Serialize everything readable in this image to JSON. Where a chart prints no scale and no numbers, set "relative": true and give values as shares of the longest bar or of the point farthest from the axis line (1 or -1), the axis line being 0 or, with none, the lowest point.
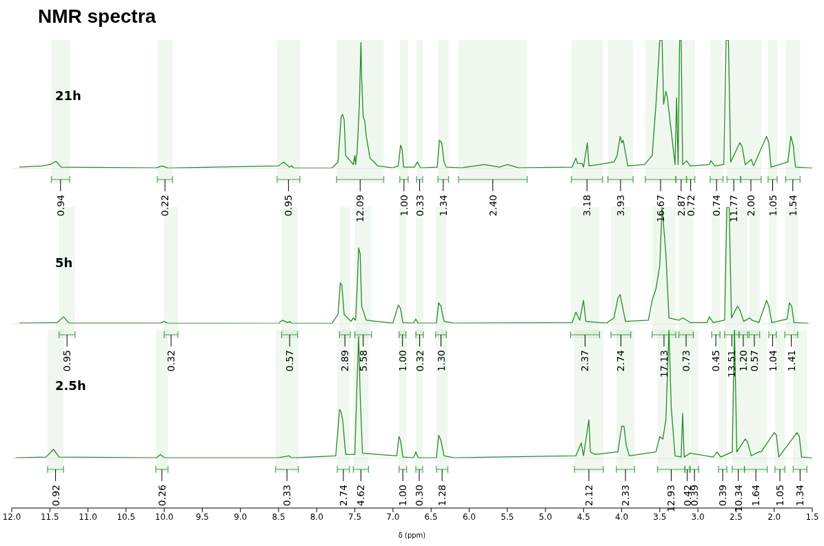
{
  "chart_data": [
    {
      "type": "line",
      "title": "NMR spectra",
      "subtitle": "21h",
      "xlim": [
        12.0,
        1.5
      ],
      "relative": true,
      "tick_labels": false,
      "line_style": "solid",
      "marker": "none",
      "series": [
        {
          "color": "#228b22",
          "x": [
            11.9,
            11.6,
            11.5,
            11.42,
            11.35,
            10.1,
            10.03,
            9.95,
            9.35,
            8.5,
            8.43,
            8.36,
            8.33,
            8.3,
            7.8,
            7.72,
            7.68,
            7.66,
            7.64,
            7.62,
            7.56,
            7.52,
            7.5,
            7.49,
            7.47,
            7.44,
            7.42,
            7.41,
            7.39,
            7.37,
            7.35,
            7.3,
            7.2,
            7.0,
            6.93,
            6.9,
            6.88,
            6.86,
            6.72,
            6.68,
            6.64,
            6.42,
            6.39,
            6.36,
            6.33,
            6.3,
            6.1,
            5.8,
            5.6,
            5.5,
            5.35,
            4.65,
            4.6,
            4.58,
            4.52,
            4.5,
            4.45,
            4.43,
            4.3,
            4.1,
            4.06,
            4.02,
            4.0,
            3.98,
            3.95,
            3.92,
            3.7,
            3.6,
            3.55,
            3.5,
            3.47,
            3.45,
            3.42,
            3.4,
            3.3,
            3.28,
            3.26,
            3.24,
            3.22,
            3.2,
            3.15,
            3.1,
            2.85,
            2.83,
            2.78,
            2.66,
            2.63,
            2.6,
            2.57,
            2.45,
            2.42,
            2.38,
            2.3,
            2.27,
            2.1,
            2.07,
            2.04,
            1.82,
            1.78,
            1.75,
            1.72,
            1.5
          ],
          "values": [
            0.01,
            0.02,
            0.03,
            0.055,
            0.01,
            0.005,
            0.02,
            0.003,
            0.01,
            0.02,
            0.05,
            0.01,
            0.02,
            0.003,
            0.003,
            0.05,
            0.4,
            0.42,
            0.38,
            0.1,
            0.06,
            0.03,
            0.1,
            0.03,
            0.13,
            0.5,
            0.98,
            0.7,
            0.4,
            0.37,
            0.25,
            0.08,
            0.02,
            0.005,
            0.02,
            0.18,
            0.15,
            0.01,
            0.01,
            0.05,
            0.005,
            0.01,
            0.22,
            0.2,
            0.05,
            0.01,
            0.005,
            0.03,
            0.01,
            0.03,
            0.005,
            0.01,
            0.08,
            0.04,
            0.04,
            0.01,
            0.2,
            0.02,
            0.03,
            0.05,
            0.1,
            0.25,
            0.2,
            0.22,
            0.12,
            0.02,
            0.03,
            0.1,
            0.5,
            1,
            1,
            0.5,
            0.6,
            0.55,
            0.03,
            0.55,
            0.03,
            1,
            1,
            0.03,
            0.06,
            0.02,
            0.03,
            0.06,
            0.02,
            0.03,
            1,
            1,
            0.05,
            0.2,
            0.17,
            0.03,
            0.07,
            0.02,
            0.25,
            0.2,
            0.01,
            0.05,
            0.25,
            0.18,
            0.01,
            0.003
          ]
        }
      ],
      "bands": [
        {
          "axis": "x",
          "from": 11.48,
          "to": 11.24,
          "label": "0.94"
        },
        {
          "axis": "x",
          "from": 10.09,
          "to": 9.89,
          "label": "0.22"
        },
        {
          "axis": "x",
          "from": 8.52,
          "to": 8.22,
          "label": "0.95"
        },
        {
          "axis": "x",
          "from": 7.74,
          "to": 7.12,
          "label": "12.09"
        },
        {
          "axis": "x",
          "from": 6.91,
          "to": 6.8,
          "label": "1.00"
        },
        {
          "axis": "x",
          "from": 6.69,
          "to": 6.61,
          "label": "0.33"
        },
        {
          "axis": "x",
          "from": 6.41,
          "to": 6.27,
          "label": "1.34"
        },
        {
          "axis": "x",
          "from": 6.14,
          "to": 5.24,
          "label": "2.40"
        },
        {
          "axis": "x",
          "from": 4.66,
          "to": 4.25,
          "label": "3.18"
        },
        {
          "axis": "x",
          "from": 4.18,
          "to": 3.85,
          "label": "3.93"
        },
        {
          "axis": "x",
          "from": 3.69,
          "to": 3.29,
          "label": "16.67"
        },
        {
          "axis": "x",
          "from": 3.29,
          "to": 3.15,
          "label": "2.87"
        },
        {
          "axis": "x",
          "from": 3.15,
          "to": 3.04,
          "label": "0.72"
        },
        {
          "axis": "x",
          "from": 2.84,
          "to": 2.67,
          "label": "0.74"
        },
        {
          "axis": "x",
          "from": 2.62,
          "to": 2.44,
          "label": "11.77"
        },
        {
          "axis": "x",
          "from": 2.44,
          "to": 2.17,
          "label": "2.00"
        },
        {
          "axis": "x",
          "from": 2.08,
          "to": 1.96,
          "label": "1.05"
        },
        {
          "axis": "x",
          "from": 1.85,
          "to": 1.66,
          "label": "1.54"
        }
      ]
    },
    {
      "type": "line",
      "subtitle": "5h",
      "xlim": [
        12.0,
        1.5
      ],
      "relative": true,
      "tick_labels": false,
      "line_style": "solid",
      "marker": "none",
      "series": [
        {
          "color": "#228b22",
          "x": [
            11.9,
            11.4,
            11.32,
            11.25,
            10.05,
            10.0,
            9.95,
            8.5,
            8.45,
            8.38,
            8.35,
            8.33,
            7.8,
            7.72,
            7.69,
            7.67,
            7.64,
            7.55,
            7.52,
            7.49,
            7.47,
            7.45,
            7.43,
            7.41,
            7.35,
            7.0,
            6.93,
            6.9,
            6.87,
            6.73,
            6.7,
            6.67,
            6.43,
            6.4,
            6.37,
            6.33,
            6.2,
            4.65,
            4.6,
            4.55,
            4.5,
            4.47,
            4.2,
            4.1,
            4.05,
            4.02,
            3.99,
            3.95,
            3.65,
            3.6,
            3.55,
            3.5,
            3.47,
            3.42,
            3.38,
            3.25,
            3.2,
            3.1,
            2.88,
            2.85,
            2.8,
            2.65,
            2.62,
            2.59,
            2.56,
            2.48,
            2.45,
            2.4,
            2.32,
            2.29,
            2.2,
            2.1,
            2.07,
            2.03,
            1.83,
            1.8,
            1.77,
            1.74,
            1.55
          ],
          "values": [
            0.005,
            0.01,
            0.06,
            0.005,
            0.005,
            0.02,
            0.003,
            0.005,
            0.03,
            0.01,
            0.02,
            0.003,
            0.003,
            0.08,
            0.35,
            0.33,
            0.08,
            0.02,
            0.05,
            0.03,
            0.3,
            0.65,
            0.6,
            0.15,
            0.03,
            0.005,
            0.16,
            0.13,
            0.01,
            0.005,
            0.04,
            0.005,
            0.005,
            0.18,
            0.15,
            0.02,
            0.005,
            0.01,
            0.1,
            0.03,
            0.2,
            0.02,
            0.005,
            0.05,
            0.22,
            0.25,
            0.15,
            0.02,
            0.03,
            0.2,
            0.3,
            0.5,
            1,
            0.6,
            0.05,
            0.03,
            0.05,
            0.01,
            0.01,
            0.06,
            0.01,
            0.03,
            1,
            1,
            0.05,
            0.15,
            0.12,
            0.02,
            0.05,
            0.03,
            0.01,
            0.2,
            0.15,
            0.01,
            0.04,
            0.18,
            0.15,
            0.01,
            0.003
          ]
        }
      ],
      "bands": [
        {
          "axis": "x",
          "from": 11.38,
          "to": 11.17,
          "label": "0.95"
        },
        {
          "axis": "x",
          "from": 10.0,
          "to": 9.82,
          "label": "0.32"
        },
        {
          "axis": "x",
          "from": 8.46,
          "to": 8.25,
          "label": "0.57"
        },
        {
          "axis": "x",
          "from": 7.7,
          "to": 7.56,
          "label": "2.89"
        },
        {
          "axis": "x",
          "from": 7.5,
          "to": 7.28,
          "label": "5.58"
        },
        {
          "axis": "x",
          "from": 6.92,
          "to": 6.83,
          "label": "1.00"
        },
        {
          "axis": "x",
          "from": 6.7,
          "to": 6.6,
          "label": "0.32"
        },
        {
          "axis": "x",
          "from": 6.44,
          "to": 6.3,
          "label": "1.30"
        },
        {
          "axis": "x",
          "from": 4.67,
          "to": 4.29,
          "label": "2.37"
        },
        {
          "axis": "x",
          "from": 4.14,
          "to": 3.88,
          "label": "2.74"
        },
        {
          "axis": "x",
          "from": 3.6,
          "to": 3.29,
          "label": "17.13"
        },
        {
          "axis": "x",
          "from": 3.25,
          "to": 3.06,
          "label": "0.73"
        },
        {
          "axis": "x",
          "from": 2.82,
          "to": 2.71,
          "label": "0.45"
        },
        {
          "axis": "x",
          "from": 2.65,
          "to": 2.46,
          "label": "13.51"
        },
        {
          "axis": "x",
          "from": 2.46,
          "to": 2.35,
          "label": "1.20"
        },
        {
          "axis": "x",
          "from": 2.33,
          "to": 2.19,
          "label": "0.57"
        },
        {
          "axis": "x",
          "from": 2.07,
          "to": 1.97,
          "label": "1.04"
        },
        {
          "axis": "x",
          "from": 1.86,
          "to": 1.69,
          "label": "1.41"
        }
      ]
    },
    {
      "type": "line",
      "subtitle": "2.5h",
      "xlabel": "δ (ppm)",
      "xlim": [
        12.0,
        1.5
      ],
      "relative": true,
      "tick_labels": "x",
      "line_style": "solid",
      "marker": "none",
      "xticks": [
        {
          "value": 12,
          "label": "12.0"
        },
        {
          "value": 11.5,
          "label": "11.5"
        },
        {
          "value": 11,
          "label": "11.0"
        },
        {
          "value": 10.5,
          "label": "10.5"
        },
        {
          "value": 10,
          "label": "10.0"
        },
        {
          "value": 9.5,
          "label": "9.5"
        },
        {
          "value": 9,
          "label": "9.0"
        },
        {
          "value": 8.5,
          "label": "8.5"
        },
        {
          "value": 8,
          "label": "8.0"
        },
        {
          "value": 7.5,
          "label": "7.5"
        },
        {
          "value": 7,
          "label": "7.0"
        },
        {
          "value": 6.5,
          "label": "6.5"
        },
        {
          "value": 6,
          "label": "6.0"
        },
        {
          "value": 5.5,
          "label": "5.5"
        },
        {
          "value": 5,
          "label": "5.0"
        },
        {
          "value": 4.5,
          "label": "4.5"
        },
        {
          "value": 4,
          "label": "4.0"
        },
        {
          "value": 3.5,
          "label": "3.5"
        },
        {
          "value": 3,
          "label": "3.0"
        },
        {
          "value": 2.5,
          "label": "2.5"
        },
        {
          "value": 2,
          "label": "2.0"
        },
        {
          "value": 1.5,
          "label": "1.5"
        }
      ],
      "series": [
        {
          "color": "#228b22",
          "x": [
            11.95,
            11.55,
            11.5,
            11.45,
            11.38,
            10.1,
            10.05,
            10.0,
            8.5,
            8.45,
            8.36,
            8.33,
            7.75,
            7.7,
            7.68,
            7.66,
            7.62,
            7.5,
            7.47,
            7.45,
            7.43,
            7.4,
            6.95,
            6.92,
            6.9,
            6.87,
            6.73,
            6.7,
            6.67,
            6.43,
            6.4,
            6.37,
            6.33,
            6.2,
            4.6,
            4.53,
            4.5,
            4.43,
            4.41,
            4.35,
            4.05,
            4.0,
            3.97,
            3.94,
            3.9,
            3.55,
            3.5,
            3.46,
            3.42,
            3.38,
            3.35,
            3.3,
            3.22,
            3.2,
            3.18,
            3.1,
            2.8,
            2.75,
            2.7,
            2.55,
            2.52,
            2.49,
            2.38,
            2.35,
            2.3,
            2.2,
            2.17,
            2.0,
            1.97,
            1.94,
            1.7,
            1.67,
            1.64,
            1.5
          ],
          "values": [
            0.005,
            0.01,
            0.04,
            0.07,
            0.01,
            0.005,
            0.03,
            0.005,
            0.005,
            0.01,
            0.02,
            0.003,
            0.02,
            0.38,
            0.36,
            0.3,
            0.03,
            0.03,
            0.6,
            0.95,
            0.5,
            0.04,
            0.02,
            0.17,
            0.14,
            0.01,
            0.005,
            0.05,
            0.005,
            0.005,
            0.18,
            0.14,
            0.02,
            0.005,
            0.02,
            0.12,
            0.02,
            0.3,
            0.05,
            0.03,
            0.05,
            0.25,
            0.25,
            0.1,
            0.02,
            0.05,
            0.17,
            0.15,
            0.3,
            1,
            0.4,
            0.02,
            0.01,
            0.35,
            0.01,
            0.04,
            0.01,
            0.05,
            0.01,
            0.05,
            1,
            0.05,
            0.15,
            0.13,
            0.02,
            0.05,
            0.05,
            0.2,
            0.18,
            0.01,
            0.2,
            0.17,
            0.01,
            0.003
          ]
        }
      ],
      "bands": [
        {
          "axis": "x",
          "from": 11.53,
          "to": 11.32,
          "label": "0.92"
        },
        {
          "axis": "x",
          "from": 10.11,
          "to": 9.95,
          "label": "0.26"
        },
        {
          "axis": "x",
          "from": 8.54,
          "to": 8.24,
          "label": "0.33"
        },
        {
          "axis": "x",
          "from": 7.73,
          "to": 7.57,
          "label": "2.74"
        },
        {
          "axis": "x",
          "from": 7.52,
          "to": 7.32,
          "label": "4.62"
        },
        {
          "axis": "x",
          "from": 6.92,
          "to": 6.82,
          "label": "1.00"
        },
        {
          "axis": "x",
          "from": 6.7,
          "to": 6.61,
          "label": "0.30"
        },
        {
          "axis": "x",
          "from": 6.43,
          "to": 6.28,
          "label": "1.28"
        },
        {
          "axis": "x",
          "from": 4.62,
          "to": 4.24,
          "label": "2.12"
        },
        {
          "axis": "x",
          "from": 4.07,
          "to": 3.83,
          "label": "2.33"
        },
        {
          "axis": "x",
          "from": 3.53,
          "to": 3.17,
          "label": "12.93"
        },
        {
          "axis": "x",
          "from": 3.17,
          "to": 3.11,
          "label": "0.42"
        },
        {
          "axis": "x",
          "from": 3.1,
          "to": 2.99,
          "label": "0.39"
        },
        {
          "axis": "x",
          "from": 2.73,
          "to": 2.62,
          "label": "0.39"
        },
        {
          "axis": "x",
          "from": 2.55,
          "to": 2.39,
          "label": "10.34"
        },
        {
          "axis": "x",
          "from": 2.39,
          "to": 2.09,
          "label": "1.64"
        },
        {
          "axis": "x",
          "from": 1.99,
          "to": 1.86,
          "label": "1.05"
        },
        {
          "axis": "x",
          "from": 1.75,
          "to": 1.57,
          "label": "1.34"
        }
      ]
    }
  ]
}
